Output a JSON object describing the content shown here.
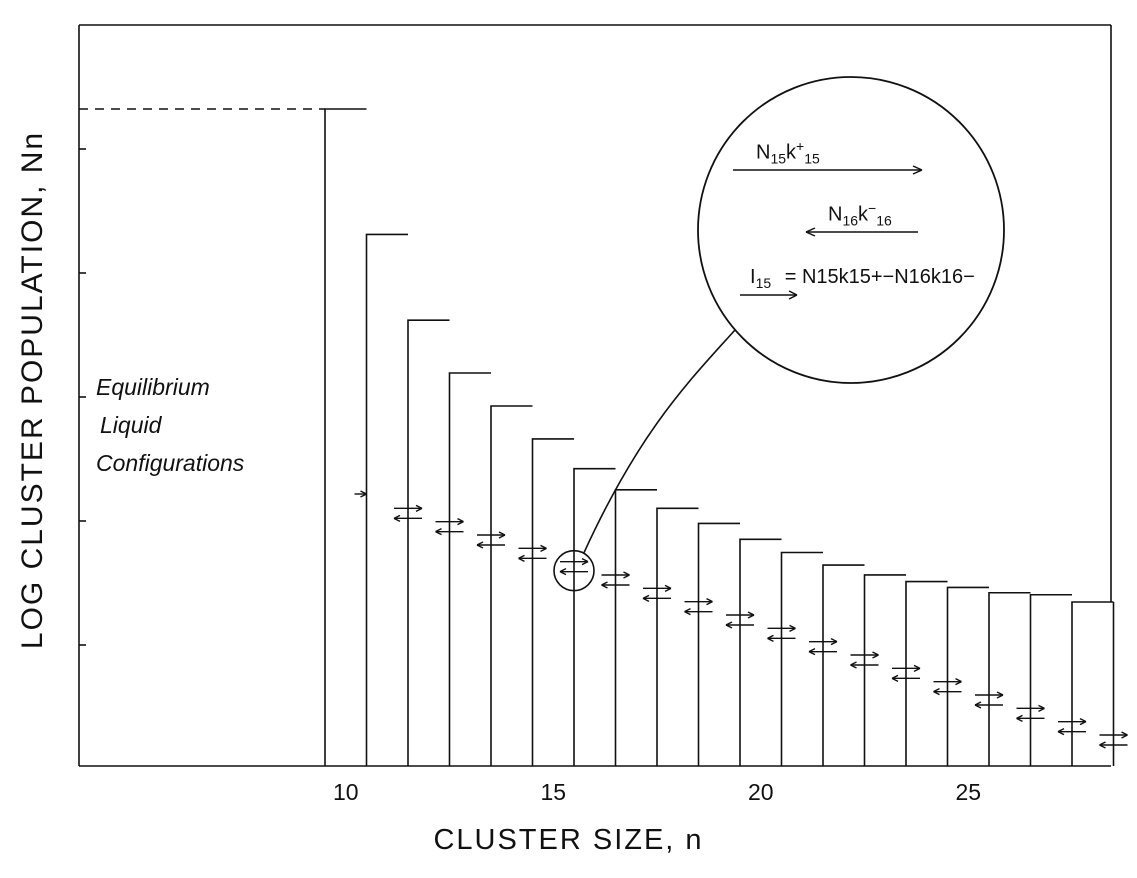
{
  "chart_data": {
    "type": "bar",
    "ylabel": "LOG CLUSTER POPULATION, Nn",
    "xlabel": "CLUSTER SIZE, n",
    "x_ticks": [
      "10",
      "15",
      "20",
      "25"
    ],
    "ylim": [
      0,
      100
    ],
    "x": [
      10,
      11,
      12,
      13,
      14,
      15,
      16,
      17,
      18,
      19,
      20,
      21,
      22,
      23,
      24,
      25,
      26,
      27,
      28
    ],
    "values": [
      100,
      81,
      68,
      60,
      55,
      50,
      45.5,
      42.3,
      39.5,
      37.2,
      34.8,
      32.8,
      30.9,
      29.4,
      28.4,
      27.5,
      26.7,
      26.4,
      25.3
    ],
    "flux_arrows_between_bars": true,
    "equilibrium_region": {
      "from_x": 1,
      "to_x": 9,
      "level": 100,
      "style": "dashed top"
    },
    "annotation": {
      "region": [
        "Equilibrium",
        "Liquid",
        "Configurations"
      ],
      "highlighted_transition": "15 → 16",
      "inset": {
        "forward": {
          "N": "N",
          "N_sub": "15",
          "k": "k",
          "k_sup": "+",
          "k_sub": "15"
        },
        "backward": {
          "N": "N",
          "N_sub": "16",
          "k": "k",
          "k_sup": "−",
          "k_sub": "16"
        },
        "flux": {
          "I": "I",
          "I_sub": "15",
          "rhs": "= N15k15+−N16k16−"
        }
      }
    }
  }
}
